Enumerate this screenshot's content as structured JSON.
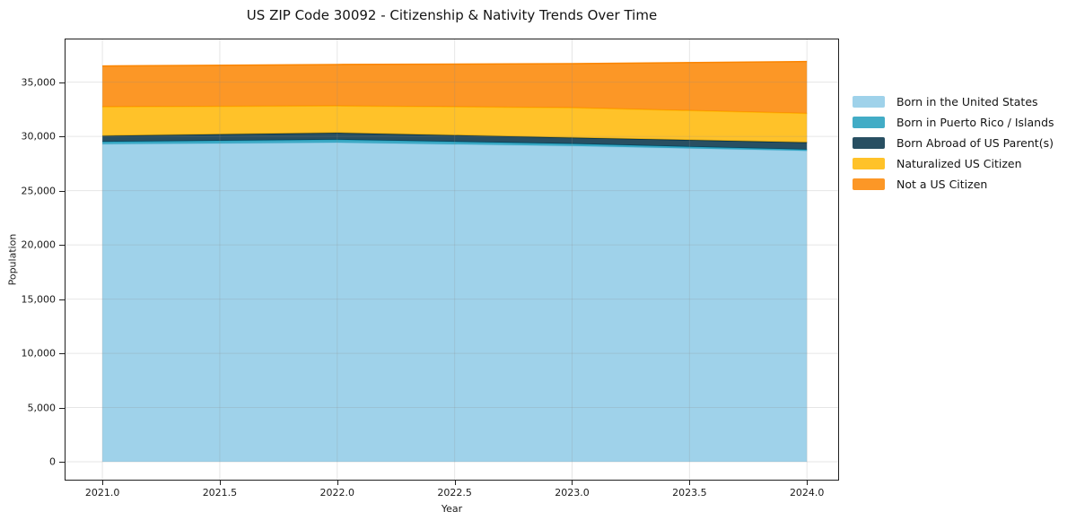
{
  "chart_data": {
    "type": "area",
    "stacked": true,
    "title": "US ZIP Code 30092 - Citizenship & Nativity Trends Over Time",
    "xlabel": "Year",
    "ylabel": "Population",
    "x": [
      2021,
      2022,
      2023,
      2024
    ],
    "series": [
      {
        "name": "Born in the United States",
        "color": "#8ECAE6",
        "values": [
          29290,
          29430,
          29120,
          28670
        ]
      },
      {
        "name": "Born in Puerto Rico / Islands",
        "color": "#219EBC",
        "values": [
          220,
          270,
          195,
          120
        ]
      },
      {
        "name": "Born Abroad of US Parent(s)",
        "color": "#023047",
        "values": [
          545,
          635,
          575,
          660
        ]
      },
      {
        "name": "Naturalized US Citizen",
        "color": "#FFB703",
        "values": [
          2675,
          2475,
          2755,
          2670
        ]
      },
      {
        "name": "Not a US Citizen",
        "color": "#FB8500",
        "values": [
          3765,
          3820,
          4065,
          4780
        ]
      }
    ],
    "totals": [
      36495,
      36630,
      36710,
      36900
    ],
    "xlim": [
      2020.843,
      2024.133
    ],
    "ylim": [
      -1650,
      38940
    ],
    "xticks": {
      "values": [
        2021.0,
        2021.5,
        2022.0,
        2022.5,
        2023.0,
        2023.5,
        2024.0
      ],
      "labels": [
        "2021.0",
        "2021.5",
        "2022.0",
        "2022.5",
        "2023.0",
        "2023.5",
        "2024.0"
      ]
    },
    "yticks": {
      "values": [
        0,
        5000,
        10000,
        15000,
        20000,
        25000,
        30000,
        35000
      ],
      "labels": [
        "0",
        "5,000",
        "10,000",
        "15,000",
        "20,000",
        "25,000",
        "30,000",
        "35,000"
      ]
    },
    "grid": true,
    "fill_opacity": 0.85,
    "grid_color": "#8c8c8c",
    "legend_position": "right"
  }
}
